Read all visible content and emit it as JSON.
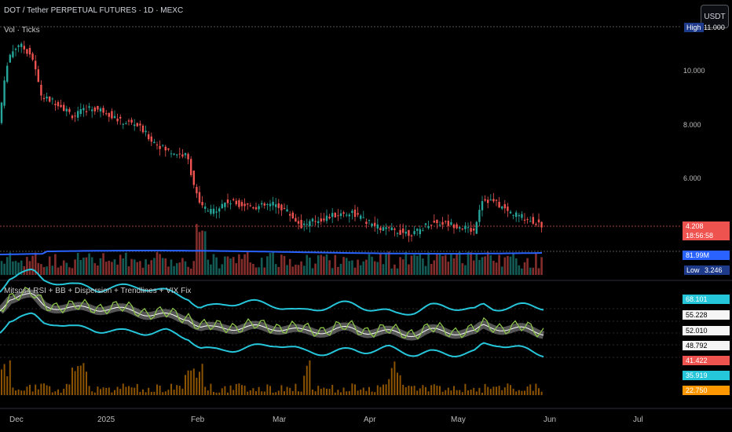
{
  "header": {
    "symbol_title": "DOT / Tether PERPETUAL FUTURES · 1D · MEXC",
    "volume_label": "Vol · Ticks",
    "indicator_label": "Mitsos4 RSI + BB + Dispersion + Trendlines + VIX Fix",
    "currency_button": "USDT"
  },
  "price_axis": {
    "ticks": [
      "10.000",
      "8.000",
      "6.000"
    ],
    "high_label": "High",
    "high_value": "11.000",
    "low_label": "Low",
    "low_value": "3.246",
    "last_price": "4.208",
    "countdown": "18:56:58",
    "volume_ma": "81.99M"
  },
  "indicator_axis": {
    "values": [
      "68.101",
      "55.228",
      "52.010",
      "48.792",
      "41.422",
      "35.919",
      "22.750"
    ],
    "colors": [
      "#26c6da",
      "#ffffff",
      "#ffffff",
      "#ffffff",
      "#ef5350",
      "#26c6da",
      "#ff9800"
    ]
  },
  "time_axis": {
    "labels": [
      "Dec",
      "2025",
      "Feb",
      "Mar",
      "Apr",
      "May",
      "Jun",
      "Jul"
    ]
  },
  "colors": {
    "up": "#26a69a",
    "down": "#ef5350",
    "volume_ma": "#2962ff",
    "bb": "#26c6da",
    "vix": "#ff9800"
  }
}
